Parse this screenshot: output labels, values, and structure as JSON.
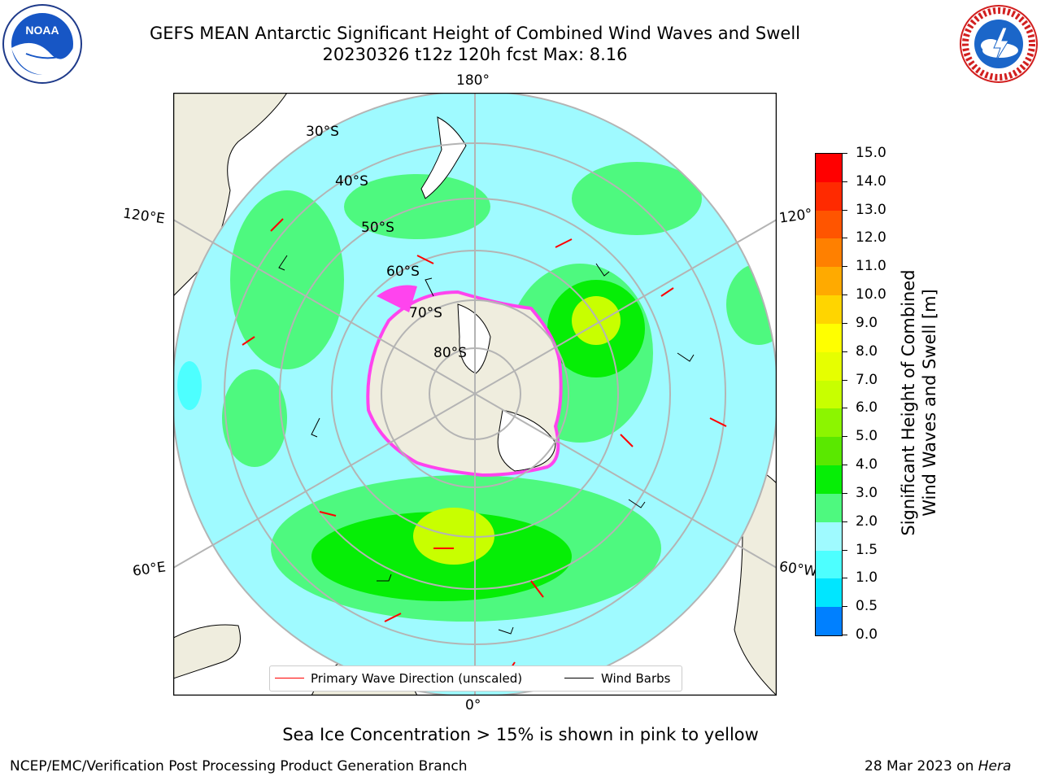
{
  "header": {
    "title_line1": "GEFS MEAN Antarctic Significant Height of Combined Wind Waves and Swell",
    "title_line2": "20230326 t12z 120h fcst   Max: 8.16"
  },
  "logos": {
    "left": {
      "icon": "noaa-logo-icon",
      "text": "NOAA"
    },
    "right": {
      "icon": "national-weather-service-logo-icon",
      "text": "NATIONAL WEATHER SERVICE"
    }
  },
  "map": {
    "projection": "south polar stereographic",
    "longitude_labels": {
      "top": "180°",
      "bottom": "0°",
      "upper_left": "120°E",
      "upper_right": "120°",
      "lower_left": "60°E",
      "lower_right": "60°W"
    },
    "latitude_labels": [
      "30°S",
      "40°S",
      "50°S",
      "60°S",
      "70°S",
      "80°S"
    ],
    "colors": {
      "land": "#efedde",
      "ocean_low": "#9ffaff",
      "ocean_mid": "#4ef97f",
      "ocean_high": "#06ee06",
      "sea_ice": "#ff44ee",
      "arrow": "#ff0000",
      "barb": "#000000",
      "grid": "#b4b4b4"
    }
  },
  "colorbar": {
    "label_line1": "Significant Height of Combined",
    "label_line2": "Wind Waves and Swell [m]",
    "ticks": [
      "15.0",
      "14.0",
      "13.0",
      "12.0",
      "11.0",
      "10.0",
      "9.0",
      "8.0",
      "7.0",
      "6.0",
      "5.0",
      "4.0",
      "3.0",
      "2.0",
      "1.5",
      "1.0",
      "0.5",
      "0.0"
    ],
    "colors": [
      "#ff0000",
      "#ff2a00",
      "#ff5500",
      "#ff8000",
      "#ffaa00",
      "#ffd500",
      "#ffff00",
      "#e6ff00",
      "#c8ff00",
      "#8cf500",
      "#5ae800",
      "#06ee06",
      "#4ef97f",
      "#9ffaff",
      "#4dffff",
      "#00e6ff",
      "#0080ff",
      "#0000ff"
    ]
  },
  "legend": {
    "primary_wave_label": "Primary Wave Direction (unscaled)",
    "wind_barbs_label": "Wind Barbs"
  },
  "footer": {
    "sea_ice_note": "Sea Ice Concentration > 15% is shown in pink to yellow",
    "producer": "NCEP/EMC/Verification Post Processing Product Generation Branch",
    "date": "28 Mar 2023 on",
    "machine": "Hera"
  }
}
